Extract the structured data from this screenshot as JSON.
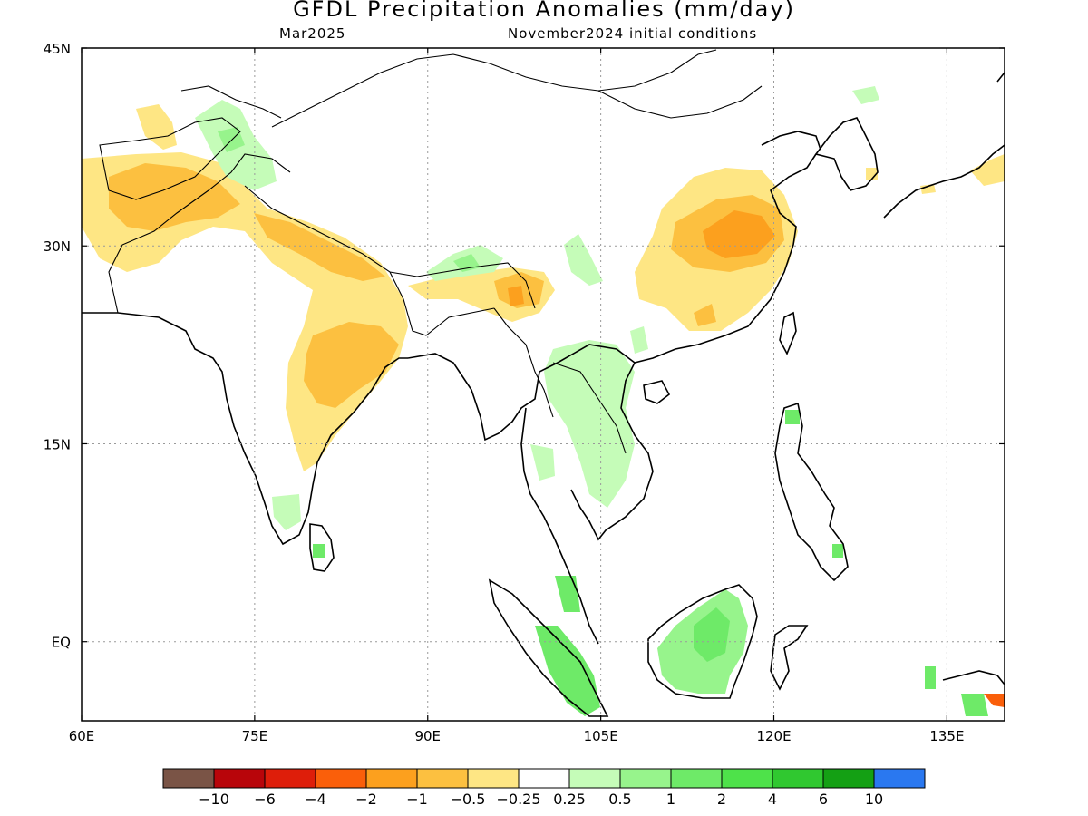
{
  "title": "GFDL Precipitation Anomalies (mm/day)",
  "subtitle_left": "Mar2025",
  "subtitle_right": "November2024 initial conditions",
  "axes": {
    "lon_min": 60,
    "lon_max": 140,
    "lat_min": -6,
    "lat_max": 45,
    "x_ticks": [
      {
        "value": 60,
        "label": "60E"
      },
      {
        "value": 75,
        "label": "75E"
      },
      {
        "value": 90,
        "label": "90E"
      },
      {
        "value": 105,
        "label": "105E"
      },
      {
        "value": 120,
        "label": "120E"
      },
      {
        "value": 135,
        "label": "135E"
      }
    ],
    "y_ticks": [
      {
        "value": 45,
        "label": "45N"
      },
      {
        "value": 30,
        "label": "30N"
      },
      {
        "value": 15,
        "label": "15N"
      },
      {
        "value": 0,
        "label": "EQ"
      }
    ],
    "grid": "dotted"
  },
  "colorbar": {
    "colors": [
      "#7a5446",
      "#b8050a",
      "#de1e0a",
      "#fa5f0a",
      "#fca01e",
      "#fcc040",
      "#fee684",
      "#ffffff",
      "#c5fcb8",
      "#97f48c",
      "#6eea68",
      "#4ee24a",
      "#30c830",
      "#14a014",
      "#2a78f0"
    ],
    "labels": [
      "−10",
      "−6",
      "−4",
      "−2",
      "−1",
      "−0.5",
      "−0.25",
      "0.25",
      "0.5",
      "1",
      "2",
      "4",
      "6",
      "10"
    ]
  }
}
